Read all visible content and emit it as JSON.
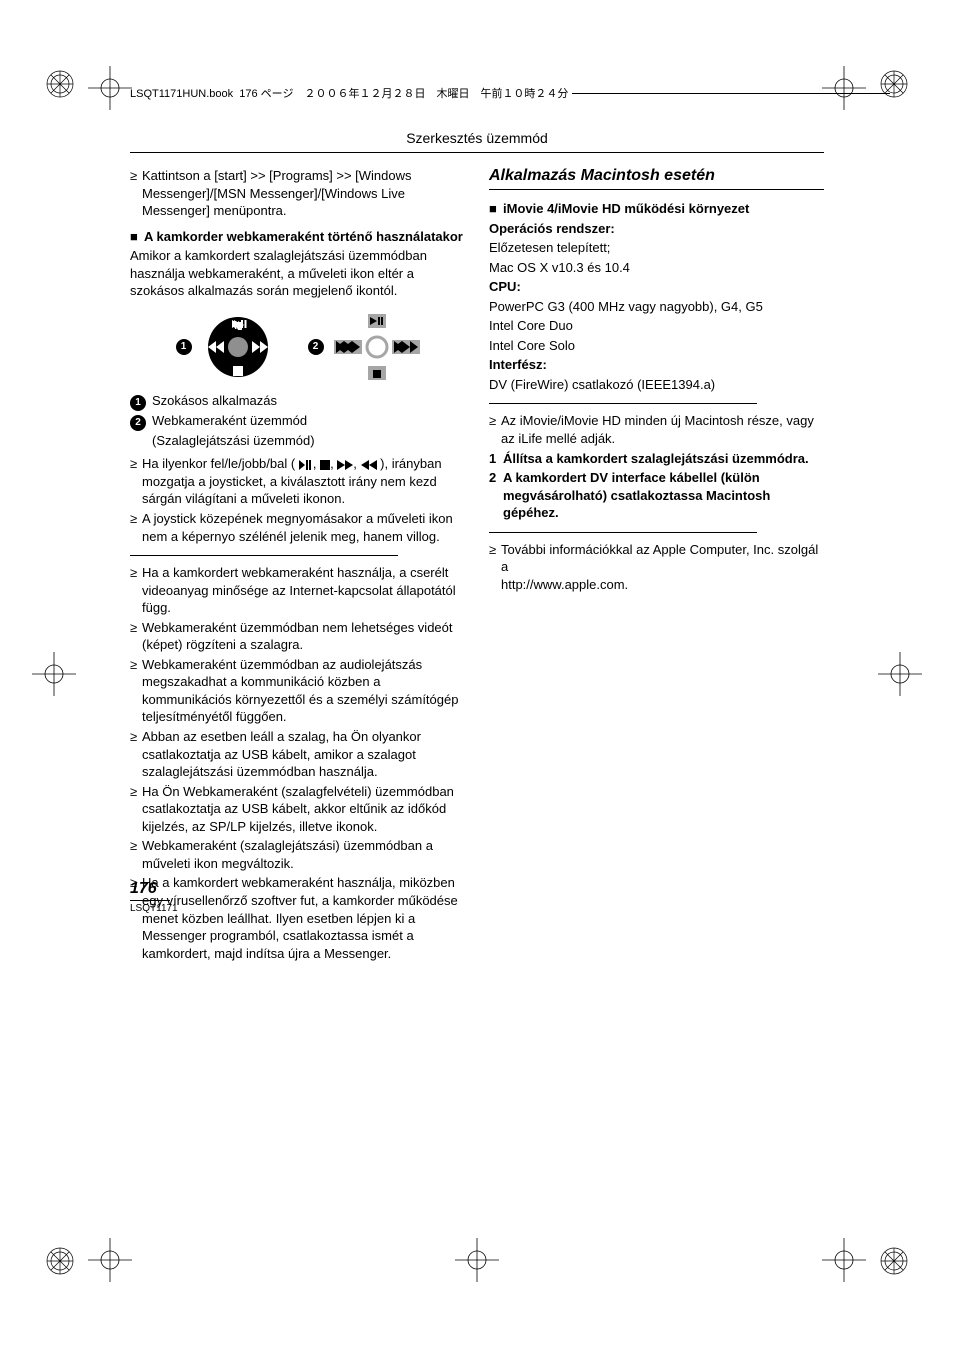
{
  "header": {
    "filename": "LSQT1171HUN.book",
    "pageinfo": "176 ページ　２００６年１２月２８日　木曜日　午前１０時２４分"
  },
  "section_header": "Szerkesztés üzemmód",
  "left": {
    "intro_bullet": "Kattintson a [start] >> [Programs] >> [Windows Messenger]/[MSN Messenger]/[Windows Live Messenger] menüpontra.",
    "sub1_title": "A kamkorder webkameraként történő használatakor",
    "sub1_para": "Amikor a kamkordert szalaglejátszási üzemmódban használja webkameraként, a műveleti ikon eltér a szokásos alkalmazás során megjelenő ikontól.",
    "legend": {
      "n1": "Szokásos alkalmazás",
      "n2": "Webkameraként üzemmód",
      "n2b": "(Szalaglejátszási üzemmód)"
    },
    "bullets_a": [
      "Ha ilyenkor fel/le/jobb/bal (",
      "), irányban mozgatja a joysticket, a kiválasztott irány nem kezd sárgán világítani a műveleti ikonon.",
      "A joystick közepének megnyomásakor a műveleti ikon nem a képernyo szélénél jelenik meg, hanem villog."
    ],
    "bullets_b": [
      "Ha a kamkordert webkameraként használja, a cserélt videoanyag minősége az Internet-kapcsolat állapotától függ.",
      "Webkameraként üzemmódban nem lehetséges videót (képet) rögzíteni a szalagra.",
      "Webkameraként üzemmódban az audiolejátszás megszakadhat a kommunikáció közben a kommunikációs környezettől és a személyi számítógép teljesítményétől függően.",
      "Abban az esetben leáll a szalag, ha Ön olyankor csatlakoztatja az USB kábelt, amikor a szalagot szalaglejátszási üzemmódban használja.",
      "Ha Ön Webkameraként (szalagfelvételi) üzemmódban csatlakoztatja az USB kábelt, akkor eltűnik az időkód kijelzés, az SP/LP kijelzés, illetve ikonok.",
      "Webkameraként (szalaglejátszási) üzemmódban a műveleti ikon megváltozik.",
      "Ha a kamkordert webkameraként használja, miközben egy vírusellenőrző szoftver fut, a kamkorder működése menet közben leállhat. Ilyen esetben lépjen ki a Messenger programból, csatlakoztassa ismét a kamkordert, majd indítsa újra a Messenger."
    ]
  },
  "right": {
    "title": "Alkalmazás Macintosh esetén",
    "sub_title": "iMovie 4/iMovie HD működési környezet",
    "os_label": "Operációs rendszer:",
    "os_lines": [
      "Előzetesen telepített;",
      "Mac OS X v10.3 és 10.4"
    ],
    "cpu_label": "CPU:",
    "cpu_lines": [
      "PowerPC G3 (400 MHz vagy nagyobb), G4, G5",
      "Intel Core Duo",
      "Intel Core Solo"
    ],
    "iface_label": "Interfész:",
    "iface_line": "DV (FireWire) csatlakozó (IEEE1394.a)",
    "bullet_c": "Az iMovie/iMovie HD minden új Macintosh része, vagy az iLife mellé adják.",
    "step1": "Állítsa a kamkordert szalaglejátszási üzemmódra.",
    "step2": "A kamkordert DV interface kábellel (külön megvásárolható) csatlakoztassa Macintosh gépéhez.",
    "bullet_d": "További információkkal az Apple Computer, Inc. szolgál a",
    "url": "http://www.apple.com.",
    "colors": {
      "circle_fill": "#8f8f8f",
      "square": "#000"
    }
  },
  "footer": {
    "page_num": "176",
    "code": "LSQT1171"
  }
}
